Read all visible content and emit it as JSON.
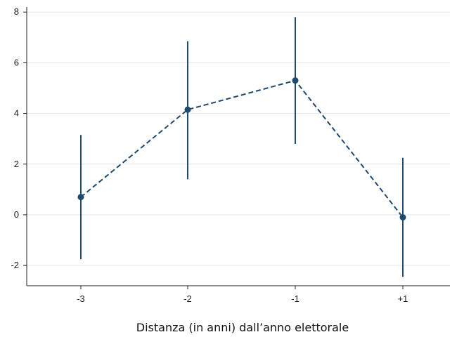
{
  "chart_data": {
    "type": "line",
    "title": "",
    "xlabel": "Distanza (in anni) dall’anno elettorale",
    "ylabel": "",
    "categories": [
      "-3",
      "-2",
      "-1",
      "+1"
    ],
    "series": [
      {
        "values": [
          0.7,
          4.15,
          5.3,
          -0.1
        ],
        "ci_lower": [
          -1.75,
          1.4,
          2.8,
          -2.45
        ],
        "ci_upper": [
          3.15,
          6.85,
          7.8,
          2.25
        ]
      }
    ],
    "ylim": [
      -2.8,
      8.2
    ],
    "yticks": [
      -2,
      0,
      2,
      4,
      6,
      8
    ],
    "grid": true,
    "line_style": "dashed",
    "color": "#1f4a6e"
  }
}
